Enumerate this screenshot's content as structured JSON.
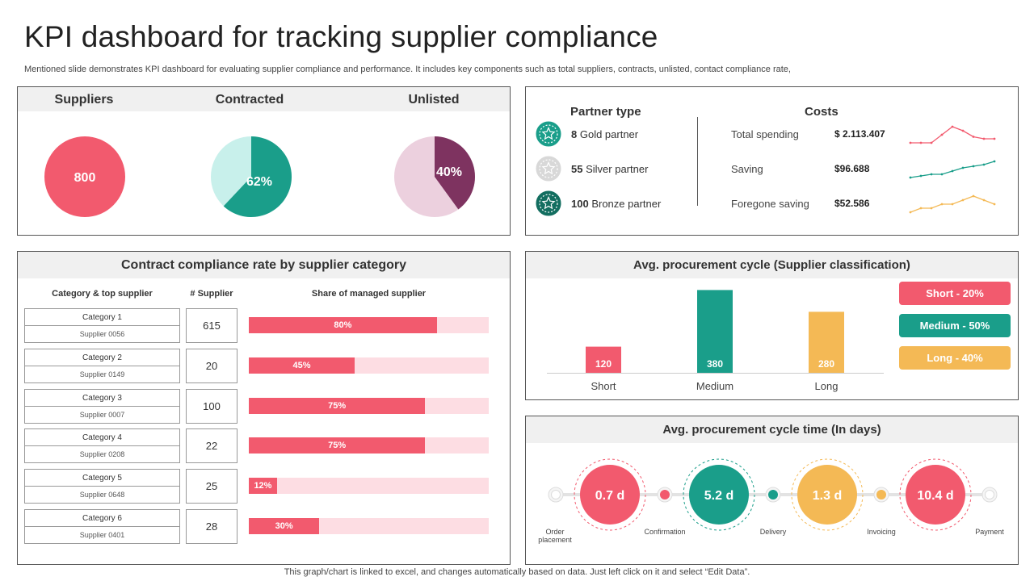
{
  "header": {
    "title": "KPI dashboard for tracking supplier compliance",
    "subtitle": "Mentioned slide demonstrates KPI dashboard for evaluating supplier compliance and performance. It includes key components such as total suppliers, contracts, unlisted, contact compliance rate,"
  },
  "colors": {
    "red": "#f25a6e",
    "teal": "#1a9e8a",
    "mint": "#c8f0eb",
    "plum": "#7e3360",
    "pink_light": "#ecd0de",
    "yellow": "#f4b955",
    "gold_medal": "#1a9e8a",
    "silver_medal": "#d8d8d8",
    "bronze_medal": "#136e60"
  },
  "kpis": {
    "suppliers": {
      "label": "Suppliers",
      "value": "800"
    },
    "contracted": {
      "label": "Contracted",
      "value": "62%",
      "fraction": 0.62
    },
    "unlisted": {
      "label": "Unlisted",
      "value": "40%",
      "fraction": 0.4
    }
  },
  "partner_type": {
    "title": "Partner type",
    "items": [
      {
        "count": "8",
        "label": "Gold partner",
        "icon": "gold-medal-icon"
      },
      {
        "count": "55",
        "label": "Silver partner",
        "icon": "silver-medal-icon"
      },
      {
        "count": "100",
        "label": "Bronze partner",
        "icon": "bronze-medal-icon"
      }
    ]
  },
  "costs": {
    "title": "Costs",
    "items": [
      {
        "name": "Total spending",
        "value": "$ 2.113.407",
        "color": "#f25a6e",
        "trend": [
          3,
          3,
          3,
          7,
          11,
          9,
          6,
          5,
          5
        ]
      },
      {
        "name": "Saving",
        "value": "$96.688",
        "color": "#1a9e8a",
        "trend": [
          2,
          3,
          4,
          4,
          6,
          8,
          9,
          10,
          12
        ]
      },
      {
        "name": "Foregone saving",
        "value": "$52.586",
        "color": "#f4b955",
        "trend": [
          2,
          3,
          3,
          4,
          4,
          5,
          6,
          5,
          4
        ]
      }
    ]
  },
  "compliance": {
    "title": "Contract compliance rate by supplier category",
    "col_category": "Category & top supplier",
    "col_supplier": "# Supplier",
    "col_share": "Share of managed supplier",
    "rows": [
      {
        "category": "Category 1",
        "supplier": "Supplier 0056",
        "count": "615",
        "share": 80,
        "share_label": "80%"
      },
      {
        "category": "Category 2",
        "supplier": "Supplier 0149",
        "count": "20",
        "share": 45,
        "share_label": "45%"
      },
      {
        "category": "Category 3",
        "supplier": "Supplier 0007",
        "count": "100",
        "share": 75,
        "share_label": "75%"
      },
      {
        "category": "Category 4",
        "supplier": "Supplier 0208",
        "count": "22",
        "share": 75,
        "share_label": "75%"
      },
      {
        "category": "Category 5",
        "supplier": "Supplier 0648",
        "count": "25",
        "share": 12,
        "share_label": "12%"
      },
      {
        "category": "Category 6",
        "supplier": "Supplier 0401",
        "count": "28",
        "share": 30,
        "share_label": "30%"
      }
    ]
  },
  "chart_data": {
    "type": "bar",
    "title": "Avg. procurement cycle (Supplier classification)",
    "categories": [
      "Short",
      "Medium",
      "Long"
    ],
    "values": [
      120,
      380,
      280
    ],
    "ylim": [
      0,
      400
    ],
    "colors": [
      "#f25a6e",
      "#1a9e8a",
      "#f4b955"
    ],
    "legend": [
      "Short - 20%",
      "Medium - 50%",
      "Long - 40%"
    ],
    "legend_position": "right"
  },
  "cycle_time": {
    "title": "Avg. procurement cycle time (In days)",
    "values": [
      {
        "value": "0.7 d",
        "color": "#f25a6e"
      },
      {
        "value": "5.2 d",
        "color": "#1a9e8a"
      },
      {
        "value": "1.3 d",
        "color": "#f4b955"
      },
      {
        "value": "10.4 d",
        "color": "#f25a6e"
      }
    ],
    "steps": [
      {
        "label": "Order placement",
        "color": "#ffffff"
      },
      {
        "label": "Confirmation",
        "color": "#f25a6e"
      },
      {
        "label": "Delivery",
        "color": "#1a9e8a"
      },
      {
        "label": "Invoicing",
        "color": "#f4b955"
      },
      {
        "label": "Payment",
        "color": "#ffffff"
      }
    ]
  },
  "footer": "This graph/chart is linked to excel,  and changes automatically based on data. Just left click on it and select “Edit Data”."
}
